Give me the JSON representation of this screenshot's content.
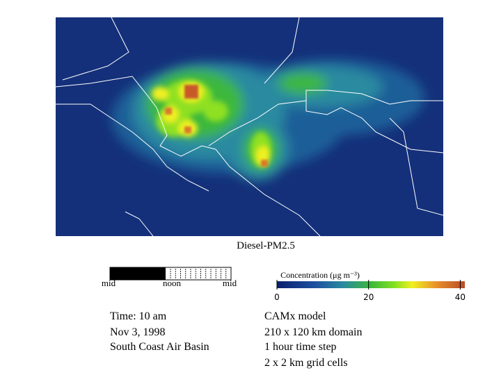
{
  "title": "Diesel-PM2.5",
  "timeline": {
    "labels": [
      "mid",
      "noon",
      "mid"
    ]
  },
  "colorbar": {
    "label": "Concentration (μg m⁻³)",
    "range": [
      0,
      41
    ],
    "ticks": [
      0,
      20,
      40
    ]
  },
  "info_left": [
    "Time: 10 am",
    "Nov 3, 1998",
    "South Coast Air Basin"
  ],
  "info_right": [
    "CAMx model",
    "210 x 120 km domain",
    "1 hour time step",
    "2 x 2 km grid cells"
  ]
}
